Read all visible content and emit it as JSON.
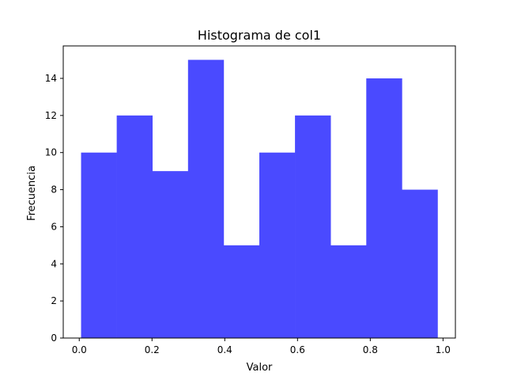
{
  "chart_data": {
    "type": "bar",
    "title": "Histograma de col1",
    "xlabel": "Valor",
    "ylabel": "Frecuencia",
    "bin_edges": [
      0.005,
      0.103,
      0.201,
      0.299,
      0.397,
      0.495,
      0.593,
      0.691,
      0.789,
      0.887,
      0.985
    ],
    "values": [
      10,
      12,
      9,
      15,
      5,
      10,
      12,
      5,
      14,
      8
    ],
    "bar_color": "#4a4aff",
    "xlim": [
      -0.044,
      1.034
    ],
    "ylim": [
      0,
      15.75
    ],
    "x_ticks": [
      {
        "value": 0.0,
        "label": "0.0"
      },
      {
        "value": 0.2,
        "label": "0.2"
      },
      {
        "value": 0.4,
        "label": "0.4"
      },
      {
        "value": 0.6,
        "label": "0.6"
      },
      {
        "value": 0.8,
        "label": "0.8"
      },
      {
        "value": 1.0,
        "label": "1.0"
      }
    ],
    "y_ticks": [
      {
        "value": 0,
        "label": "0"
      },
      {
        "value": 2,
        "label": "2"
      },
      {
        "value": 4,
        "label": "4"
      },
      {
        "value": 6,
        "label": "6"
      },
      {
        "value": 8,
        "label": "8"
      },
      {
        "value": 10,
        "label": "10"
      },
      {
        "value": 12,
        "label": "12"
      },
      {
        "value": 14,
        "label": "14"
      }
    ],
    "grid": false,
    "legend": "none"
  }
}
